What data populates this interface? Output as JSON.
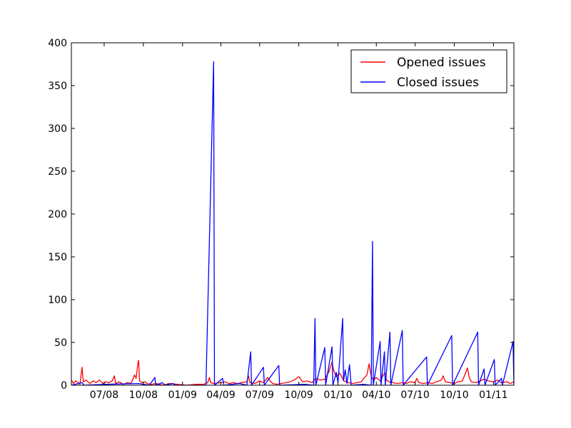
{
  "chart_data": {
    "type": "line",
    "title": "",
    "xlabel": "",
    "ylabel": "",
    "x_start": "2008-04-15",
    "x_end": "2011-02-18",
    "xlim": [
      "2008-04-15",
      "2011-02-18"
    ],
    "ylim": [
      0,
      400
    ],
    "yticks": [
      0,
      50,
      100,
      150,
      200,
      250,
      300,
      350,
      400
    ],
    "xticks": [
      {
        "date": "2008-07-01",
        "label": "07/08"
      },
      {
        "date": "2008-10-01",
        "label": "10/08"
      },
      {
        "date": "2009-01-01",
        "label": "01/09"
      },
      {
        "date": "2009-04-01",
        "label": "04/09"
      },
      {
        "date": "2009-07-01",
        "label": "07/09"
      },
      {
        "date": "2009-10-01",
        "label": "10/09"
      },
      {
        "date": "2010-01-01",
        "label": "01/10"
      },
      {
        "date": "2010-04-01",
        "label": "04/10"
      },
      {
        "date": "2010-07-01",
        "label": "07/10"
      },
      {
        "date": "2010-10-01",
        "label": "10/10"
      },
      {
        "date": "2011-01-01",
        "label": "01/11"
      }
    ],
    "grid": false,
    "legend": "top-right",
    "series": [
      {
        "name": "Opened issues",
        "color": "#ff0000",
        "points": [
          [
            "2008-04-15",
            6
          ],
          [
            "2008-04-20",
            2
          ],
          [
            "2008-04-25",
            5
          ],
          [
            "2008-05-01",
            3
          ],
          [
            "2008-05-05",
            1
          ],
          [
            "2008-05-10",
            21
          ],
          [
            "2008-05-13",
            4
          ],
          [
            "2008-05-20",
            6
          ],
          [
            "2008-05-28",
            2
          ],
          [
            "2008-06-05",
            5
          ],
          [
            "2008-06-12",
            3
          ],
          [
            "2008-06-20",
            6
          ],
          [
            "2008-06-28",
            2
          ],
          [
            "2008-07-05",
            4
          ],
          [
            "2008-07-12",
            3
          ],
          [
            "2008-07-20",
            5
          ],
          [
            "2008-07-25",
            11
          ],
          [
            "2008-07-28",
            2
          ],
          [
            "2008-08-05",
            4
          ],
          [
            "2008-08-15",
            1
          ],
          [
            "2008-08-25",
            3
          ],
          [
            "2008-09-01",
            2
          ],
          [
            "2008-09-05",
            5
          ],
          [
            "2008-09-10",
            12
          ],
          [
            "2008-09-14",
            8
          ],
          [
            "2008-09-18",
            25
          ],
          [
            "2008-09-20",
            29
          ],
          [
            "2008-09-22",
            5
          ],
          [
            "2008-09-28",
            3
          ],
          [
            "2008-10-05",
            4
          ],
          [
            "2008-10-10",
            2
          ],
          [
            "2008-10-20",
            1
          ],
          [
            "2008-11-01",
            2
          ],
          [
            "2008-11-15",
            0
          ],
          [
            "2008-12-01",
            2
          ],
          [
            "2008-12-20",
            1
          ],
          [
            "2009-01-10",
            0
          ],
          [
            "2009-02-01",
            1
          ],
          [
            "2009-02-20",
            1
          ],
          [
            "2009-03-01",
            3
          ],
          [
            "2009-03-05",
            9
          ],
          [
            "2009-03-08",
            3
          ],
          [
            "2009-03-15",
            2
          ],
          [
            "2009-04-01",
            3
          ],
          [
            "2009-04-10",
            4
          ],
          [
            "2009-04-20",
            2
          ],
          [
            "2009-05-01",
            3
          ],
          [
            "2009-05-10",
            2
          ],
          [
            "2009-05-20",
            3
          ],
          [
            "2009-06-01",
            4
          ],
          [
            "2009-06-05",
            11
          ],
          [
            "2009-06-08",
            3
          ],
          [
            "2009-06-20",
            2
          ],
          [
            "2009-07-01",
            5
          ],
          [
            "2009-07-10",
            3
          ],
          [
            "2009-07-20",
            9
          ],
          [
            "2009-07-25",
            5
          ],
          [
            "2009-08-01",
            2
          ],
          [
            "2009-08-10",
            1
          ],
          [
            "2009-08-20",
            2
          ],
          [
            "2009-09-01",
            3
          ],
          [
            "2009-09-10",
            4
          ],
          [
            "2009-09-20",
            6
          ],
          [
            "2009-10-01",
            10
          ],
          [
            "2009-10-10",
            4
          ],
          [
            "2009-10-20",
            5
          ],
          [
            "2009-11-01",
            3
          ],
          [
            "2009-11-10",
            8
          ],
          [
            "2009-11-20",
            6
          ],
          [
            "2009-12-01",
            7
          ],
          [
            "2009-12-10",
            15
          ],
          [
            "2009-12-18",
            27
          ],
          [
            "2009-12-22",
            17
          ],
          [
            "2009-12-28",
            10
          ],
          [
            "2010-01-05",
            14
          ],
          [
            "2010-01-15",
            5
          ],
          [
            "2010-01-25",
            3
          ],
          [
            "2010-02-05",
            2
          ],
          [
            "2010-02-15",
            3
          ],
          [
            "2010-02-25",
            4
          ],
          [
            "2010-03-01",
            7
          ],
          [
            "2010-03-10",
            12
          ],
          [
            "2010-03-15",
            25
          ],
          [
            "2010-03-20",
            10
          ],
          [
            "2010-03-25",
            6
          ],
          [
            "2010-04-01",
            9
          ],
          [
            "2010-04-10",
            5
          ],
          [
            "2010-04-20",
            14
          ],
          [
            "2010-04-25",
            6
          ],
          [
            "2010-05-01",
            4
          ],
          [
            "2010-05-10",
            3
          ],
          [
            "2010-05-20",
            2
          ],
          [
            "2010-06-01",
            3
          ],
          [
            "2010-06-10",
            2
          ],
          [
            "2010-06-20",
            4
          ],
          [
            "2010-07-01",
            3
          ],
          [
            "2010-07-05",
            8
          ],
          [
            "2010-07-10",
            3
          ],
          [
            "2010-07-20",
            2
          ],
          [
            "2010-08-01",
            3
          ],
          [
            "2010-08-10",
            2
          ],
          [
            "2010-08-20",
            4
          ],
          [
            "2010-09-01",
            6
          ],
          [
            "2010-09-05",
            11
          ],
          [
            "2010-09-10",
            4
          ],
          [
            "2010-09-20",
            3
          ],
          [
            "2010-10-01",
            2
          ],
          [
            "2010-10-10",
            4
          ],
          [
            "2010-10-20",
            5
          ],
          [
            "2010-11-01",
            20
          ],
          [
            "2010-11-05",
            9
          ],
          [
            "2010-11-10",
            4
          ],
          [
            "2010-11-20",
            3
          ],
          [
            "2010-12-01",
            5
          ],
          [
            "2010-12-10",
            7
          ],
          [
            "2010-12-20",
            5
          ],
          [
            "2011-01-01",
            4
          ],
          [
            "2011-01-10",
            6
          ],
          [
            "2011-01-20",
            3
          ],
          [
            "2011-02-01",
            4
          ],
          [
            "2011-02-10",
            2
          ],
          [
            "2011-02-18",
            4
          ]
        ]
      },
      {
        "name": "Closed issues",
        "color": "#0000ff",
        "points": [
          [
            "2008-04-15",
            0
          ],
          [
            "2008-05-10",
            3
          ],
          [
            "2008-05-15",
            0
          ],
          [
            "2008-07-01",
            1
          ],
          [
            "2008-09-20",
            2
          ],
          [
            "2008-10-15",
            0
          ],
          [
            "2008-10-28",
            9
          ],
          [
            "2008-10-30",
            0
          ],
          [
            "2008-11-15",
            3
          ],
          [
            "2008-11-20",
            0
          ],
          [
            "2008-12-10",
            2
          ],
          [
            "2008-12-15",
            0
          ],
          [
            "2009-02-25",
            0
          ],
          [
            "2009-03-15",
            378
          ],
          [
            "2009-03-17",
            0
          ],
          [
            "2009-04-05",
            8
          ],
          [
            "2009-04-08",
            0
          ],
          [
            "2009-05-15",
            2
          ],
          [
            "2009-06-01",
            0
          ],
          [
            "2009-06-10",
            39
          ],
          [
            "2009-06-12",
            0
          ],
          [
            "2009-07-10",
            21
          ],
          [
            "2009-07-12",
            0
          ],
          [
            "2009-08-15",
            23
          ],
          [
            "2009-08-17",
            0
          ],
          [
            "2009-10-15",
            1
          ],
          [
            "2009-11-05",
            0
          ],
          [
            "2009-11-08",
            78
          ],
          [
            "2009-11-10",
            0
          ],
          [
            "2009-12-01",
            44
          ],
          [
            "2009-12-03",
            0
          ],
          [
            "2009-12-18",
            45
          ],
          [
            "2009-12-20",
            0
          ],
          [
            "2009-12-28",
            15
          ],
          [
            "2010-01-01",
            3
          ],
          [
            "2010-01-12",
            78
          ],
          [
            "2010-01-14",
            5
          ],
          [
            "2010-01-18",
            18
          ],
          [
            "2010-01-22",
            2
          ],
          [
            "2010-01-28",
            24
          ],
          [
            "2010-02-01",
            0
          ],
          [
            "2010-03-01",
            1
          ],
          [
            "2010-03-20",
            0
          ],
          [
            "2010-03-23",
            168
          ],
          [
            "2010-03-25",
            0
          ],
          [
            "2010-04-10",
            51
          ],
          [
            "2010-04-12",
            0
          ],
          [
            "2010-04-20",
            39
          ],
          [
            "2010-04-22",
            0
          ],
          [
            "2010-05-03",
            62
          ],
          [
            "2010-05-05",
            0
          ],
          [
            "2010-06-01",
            64
          ],
          [
            "2010-06-03",
            0
          ],
          [
            "2010-07-28",
            33
          ],
          [
            "2010-07-30",
            0
          ],
          [
            "2010-09-25",
            58
          ],
          [
            "2010-09-27",
            0
          ],
          [
            "2010-11-25",
            62
          ],
          [
            "2010-11-27",
            0
          ],
          [
            "2010-12-10",
            19
          ],
          [
            "2010-12-12",
            0
          ],
          [
            "2011-01-03",
            30
          ],
          [
            "2011-01-05",
            0
          ],
          [
            "2011-01-20",
            8
          ],
          [
            "2011-01-22",
            0
          ],
          [
            "2011-02-16",
            51
          ],
          [
            "2011-02-18",
            0
          ]
        ]
      }
    ]
  }
}
